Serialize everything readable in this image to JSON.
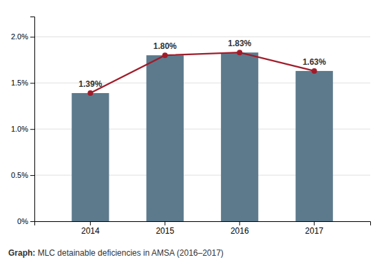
{
  "chart_data": {
    "type": "bar",
    "categories": [
      "2014",
      "2015",
      "2016",
      "2017"
    ],
    "series": [
      {
        "type": "bar",
        "color": "#5c7a8c",
        "values": [
          1.39,
          1.8,
          1.83,
          1.63
        ],
        "value_labels": [
          "1.39%",
          "1.80%",
          "1.83%",
          "1.63%"
        ]
      },
      {
        "type": "line",
        "color": "#a01c2a",
        "marker": "circle",
        "values": [
          1.39,
          1.8,
          1.83,
          1.63
        ]
      }
    ],
    "ylim": [
      0,
      2.22
    ],
    "yticks": [
      {
        "value": 0,
        "label": "0%"
      },
      {
        "value": 0.5,
        "label": "0.5%"
      },
      {
        "value": 1.0,
        "label": "1.0%"
      },
      {
        "value": 1.5,
        "label": "1.5%"
      },
      {
        "value": 2.0,
        "label": "2.0%"
      }
    ],
    "grid": true,
    "data_labels": true,
    "annotations": [
      "Graph:",
      " MLC detainable deficiencies in AMSA (2016–2017)"
    ]
  }
}
